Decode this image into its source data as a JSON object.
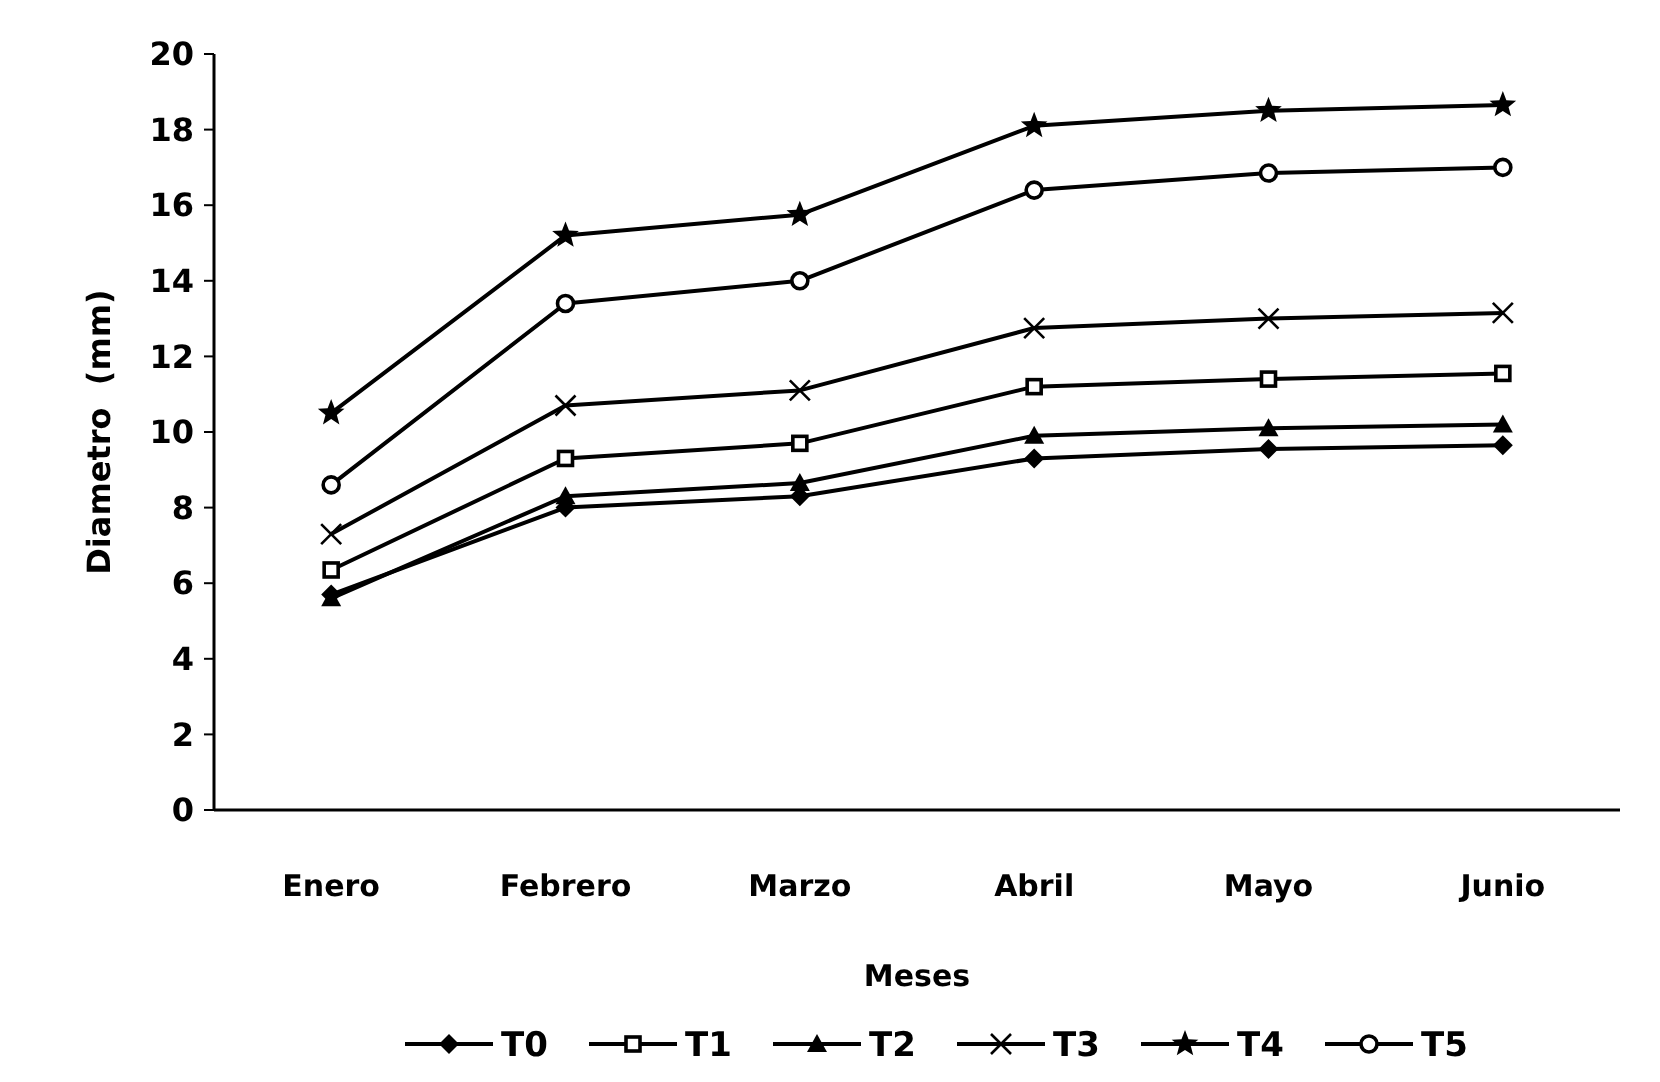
{
  "chart_data": {
    "type": "line",
    "xlabel": "Meses",
    "ylabel": "Diametro  (mm)",
    "categories": [
      "Enero",
      "Febrero",
      "Marzo",
      "Abril",
      "Mayo",
      "Junio"
    ],
    "ylim": [
      0,
      20
    ],
    "yticks": [
      0,
      2,
      4,
      6,
      8,
      10,
      12,
      14,
      16,
      18,
      20
    ],
    "grid": false,
    "legend": "bottom",
    "line_style": "solid",
    "series": [
      {
        "name": "T0",
        "color": "#000000",
        "marker": "diamond",
        "values": [
          5.7,
          8.0,
          8.3,
          9.3,
          9.55,
          9.65
        ]
      },
      {
        "name": "T1",
        "color": "#000000",
        "marker": "square",
        "values": [
          6.35,
          9.3,
          9.7,
          11.2,
          11.4,
          11.55
        ]
      },
      {
        "name": "T2",
        "color": "#000000",
        "marker": "triangle",
        "values": [
          5.6,
          8.3,
          8.65,
          9.9,
          10.1,
          10.2
        ]
      },
      {
        "name": "T3",
        "color": "#000000",
        "marker": "cross",
        "values": [
          7.3,
          10.7,
          11.1,
          12.75,
          13.0,
          13.15
        ]
      },
      {
        "name": "T4",
        "color": "#000000",
        "marker": "star",
        "values": [
          10.5,
          15.2,
          15.75,
          18.1,
          18.5,
          18.65
        ]
      },
      {
        "name": "T5",
        "color": "#000000",
        "marker": "circle",
        "values": [
          8.6,
          13.4,
          14.0,
          16.4,
          16.85,
          17.0
        ]
      }
    ]
  }
}
